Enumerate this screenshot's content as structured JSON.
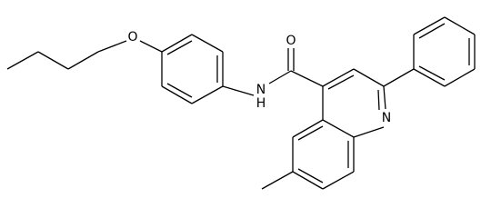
{
  "atoms": [
    {
      "label": "O"
    },
    {
      "label": "N"
    },
    {
      "label": "H"
    },
    {
      "label": "O"
    },
    {
      "label": "N"
    }
  ]
}
